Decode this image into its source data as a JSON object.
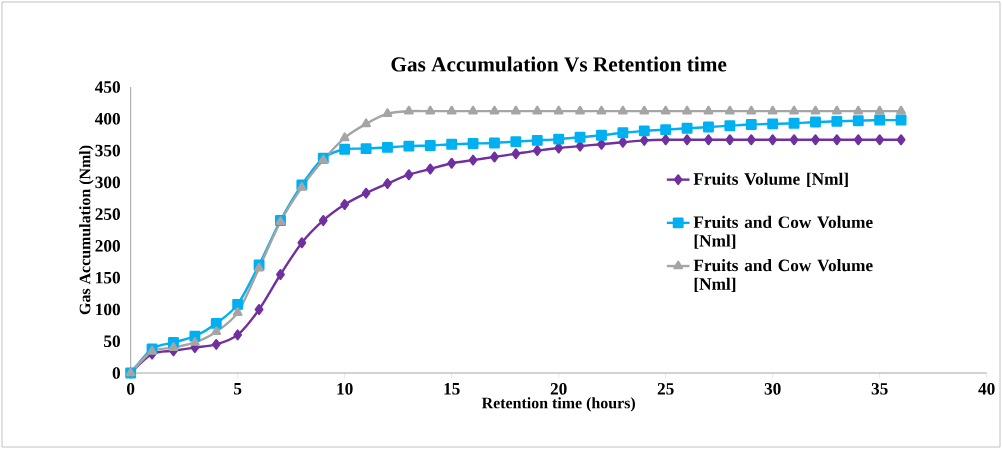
{
  "chart_data": {
    "type": "line",
    "title": "Gas Accumulation Vs Retention time",
    "xlabel": "Retention time (hours)",
    "ylabel": "Gas Accumulation (Nml)",
    "x": [
      0,
      1,
      2,
      3,
      4,
      5,
      6,
      7,
      8,
      9,
      10,
      11,
      12,
      13,
      14,
      15,
      16,
      17,
      18,
      19,
      20,
      21,
      22,
      23,
      24,
      25,
      26,
      27,
      28,
      29,
      30,
      31,
      32,
      33,
      34,
      35,
      36
    ],
    "xlim": [
      0,
      40
    ],
    "xticks": [
      0,
      5,
      10,
      15,
      20,
      25,
      30,
      35,
      40
    ],
    "ylim": [
      0,
      450
    ],
    "yticks": [
      0,
      50,
      100,
      150,
      200,
      250,
      300,
      350,
      400,
      450
    ],
    "grid": false,
    "legend": "right",
    "line_style": "solid",
    "series": [
      {
        "name": "Fruits Volume [Nml]",
        "color": "#7030a0",
        "marker": "diamond",
        "values": [
          0,
          30,
          35,
          40,
          45,
          60,
          100,
          155,
          205,
          240,
          265,
          283,
          298,
          312,
          321,
          330,
          335,
          340,
          345,
          350,
          354,
          357,
          360,
          363,
          366,
          367,
          367,
          367,
          367,
          367,
          367,
          367,
          367,
          367,
          367,
          367,
          367
        ]
      },
      {
        "name": "Fruits and Cow Volume [Nml]",
        "color": "#00b0f0",
        "marker": "square",
        "values": [
          0,
          38,
          48,
          58,
          78,
          108,
          170,
          240,
          296,
          338,
          352,
          353,
          355,
          357,
          358,
          360,
          361,
          362,
          364,
          366,
          368,
          371,
          374,
          378,
          381,
          383,
          385,
          387,
          389,
          391,
          392,
          393,
          395,
          396,
          397,
          398,
          398
        ]
      },
      {
        "name": "Fruits and Cow Volume [Nml]",
        "color": "#a5a5a5",
        "marker": "triangle",
        "values": [
          0,
          34,
          40,
          48,
          65,
          95,
          165,
          238,
          292,
          335,
          370,
          392,
          408,
          412,
          412,
          412,
          412,
          412,
          412,
          412,
          412,
          412,
          412,
          412,
          412,
          412,
          412,
          412,
          412,
          412,
          412,
          412,
          412,
          412,
          412,
          412,
          412
        ]
      }
    ]
  }
}
